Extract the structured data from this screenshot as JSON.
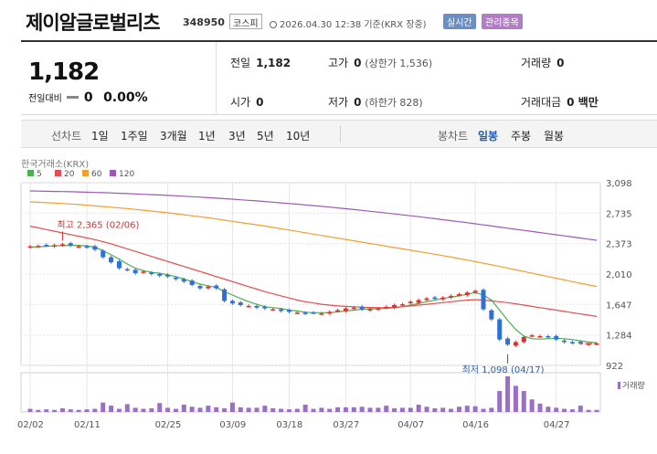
{
  "header": {
    "name": "제이알글로벌리츠",
    "code": "348950",
    "market": "코스피",
    "datetime": "2026.04.30 12:38 기준(KRX 장중)",
    "badge_live": "실시간",
    "badge_managed": "관리종목"
  },
  "quote": {
    "price": "1,182",
    "change_label": "전일대비",
    "change_value": "0",
    "change_pct": "0.00%",
    "prev_label": "전일",
    "prev_value": "1,182",
    "high_label": "고가",
    "high_value": "0",
    "high_sub": "(상한가 1,536)",
    "volume_label": "거래량",
    "volume_value": "0",
    "open_label": "시가",
    "open_value": "0",
    "low_label": "저가",
    "low_value": "0",
    "low_sub": "(하한가 828)",
    "amount_label": "거래대금",
    "amount_value": "0 백만"
  },
  "tabs": {
    "line_chart_label": "선차트",
    "periods": [
      "1일",
      "1주일",
      "3개월",
      "1년",
      "3년",
      "5년",
      "10년"
    ],
    "candle_label": "봉차트",
    "candle_periods": [
      "일봉",
      "주봉",
      "월봉"
    ],
    "active_candle": "일봉"
  },
  "chart_data": {
    "type": "candlestick",
    "source": "한국거래소(KRX)",
    "moving_averages": [
      {
        "name": "5",
        "color": "#4caf50"
      },
      {
        "name": "20",
        "color": "#e05050"
      },
      {
        "name": "60",
        "color": "#f0a030"
      },
      {
        "name": "120",
        "color": "#9b59b6"
      }
    ],
    "y_ticks": [
      "3,098",
      "2,735",
      "2,373",
      "2,010",
      "1,647",
      "1,284",
      "922"
    ],
    "y_range": [
      922,
      3098
    ],
    "x_ticks": [
      "02/02",
      "02/11",
      "02/25",
      "03/09",
      "03/18",
      "03/27",
      "04/07",
      "04/16",
      "04/27"
    ],
    "volume_label": "거래량",
    "high_note": "최고 2,365 (02/06)",
    "low_note": "최저 1,098 (04/17)",
    "colors": {
      "up": "#e03030",
      "down": "#2f6fd6",
      "grid": "#e6e6e6"
    },
    "closes": [
      2340,
      2345,
      2350,
      2355,
      2365,
      2350,
      2340,
      2330,
      2300,
      2210,
      2150,
      2080,
      2060,
      2020,
      2040,
      2010,
      1990,
      1980,
      1950,
      1920,
      1880,
      1840,
      1860,
      1840,
      1690,
      1660,
      1640,
      1630,
      1610,
      1600,
      1590,
      1570,
      1560,
      1550,
      1540,
      1550,
      1540,
      1560,
      1580,
      1600,
      1610,
      1590,
      1590,
      1600,
      1620,
      1640,
      1650,
      1680,
      1700,
      1720,
      1720,
      1730,
      1750,
      1770,
      1790,
      1810,
      1590,
      1470,
      1230,
      1170,
      1200,
      1260,
      1280,
      1270,
      1260,
      1230,
      1200,
      1190,
      1182,
      1182,
      1182
    ],
    "volumes": [
      30,
      20,
      25,
      20,
      35,
      25,
      20,
      25,
      30,
      90,
      60,
      30,
      75,
      40,
      30,
      35,
      85,
      40,
      30,
      70,
      50,
      40,
      60,
      45,
      35,
      90,
      45,
      40,
      40,
      60,
      35,
      30,
      25,
      30,
      70,
      30,
      40,
      30,
      45,
      45,
      45,
      50,
      40,
      40,
      60,
      35,
      40,
      40,
      70,
      50,
      35,
      40,
      30,
      50,
      60,
      55,
      30,
      40,
      200,
      340,
      250,
      200,
      120,
      80,
      50,
      40,
      30,
      25,
      60,
      20,
      20
    ],
    "ma5": [
      2330,
      2335,
      2340,
      2345,
      2348,
      2352,
      2352,
      2346,
      2330,
      2290,
      2240,
      2190,
      2130,
      2080,
      2050,
      2030,
      2020,
      2000,
      1980,
      1950,
      1920,
      1890,
      1870,
      1850,
      1800,
      1760,
      1720,
      1680,
      1650,
      1620,
      1610,
      1600,
      1580,
      1570,
      1555,
      1550,
      1550,
      1550,
      1560,
      1570,
      1580,
      1590,
      1595,
      1598,
      1600,
      1610,
      1620,
      1640,
      1660,
      1680,
      1700,
      1720,
      1735,
      1750,
      1770,
      1790,
      1760,
      1700,
      1580,
      1460,
      1350,
      1270,
      1240,
      1235,
      1240,
      1245,
      1240,
      1230,
      1215,
      1200,
      1190
    ],
    "ma20": [
      2580,
      2560,
      2540,
      2520,
      2500,
      2480,
      2460,
      2440,
      2420,
      2395,
      2370,
      2340,
      2310,
      2280,
      2250,
      2220,
      2190,
      2160,
      2130,
      2100,
      2070,
      2040,
      2010,
      1980,
      1950,
      1920,
      1890,
      1860,
      1830,
      1800,
      1775,
      1750,
      1725,
      1700,
      1680,
      1665,
      1650,
      1640,
      1630,
      1625,
      1620,
      1615,
      1612,
      1610,
      1610,
      1615,
      1620,
      1630,
      1640,
      1650,
      1660,
      1670,
      1680,
      1690,
      1700,
      1705,
      1700,
      1690,
      1680,
      1670,
      1655,
      1640,
      1625,
      1610,
      1595,
      1580,
      1565,
      1550,
      1535,
      1520,
      1505
    ],
    "ma60": [
      2870,
      2865,
      2860,
      2855,
      2850,
      2845,
      2838,
      2830,
      2822,
      2814,
      2806,
      2798,
      2790,
      2780,
      2770,
      2760,
      2750,
      2740,
      2728,
      2716,
      2704,
      2692,
      2680,
      2666,
      2652,
      2638,
      2624,
      2610,
      2596,
      2582,
      2566,
      2550,
      2534,
      2518,
      2502,
      2486,
      2470,
      2454,
      2438,
      2422,
      2406,
      2390,
      2374,
      2358,
      2342,
      2326,
      2310,
      2294,
      2278,
      2262,
      2246,
      2230,
      2212,
      2194,
      2176,
      2158,
      2140,
      2120,
      2100,
      2080,
      2060,
      2040,
      2020,
      2000,
      1980,
      1960,
      1940,
      1920,
      1900,
      1880,
      1862
    ],
    "ma120": [
      3000,
      2998,
      2996,
      2994,
      2992,
      2990,
      2988,
      2985,
      2982,
      2979,
      2976,
      2972,
      2968,
      2964,
      2960,
      2956,
      2952,
      2947,
      2942,
      2937,
      2932,
      2926,
      2920,
      2914,
      2908,
      2902,
      2895,
      2888,
      2881,
      2874,
      2866,
      2858,
      2850,
      2842,
      2834,
      2825,
      2816,
      2807,
      2798,
      2788,
      2778,
      2768,
      2758,
      2748,
      2737,
      2726,
      2715,
      2704,
      2693,
      2681,
      2669,
      2657,
      2645,
      2633,
      2621,
      2608,
      2595,
      2582,
      2569,
      2556,
      2543,
      2530,
      2517,
      2504,
      2491,
      2478,
      2465,
      2452,
      2439,
      2426,
      2413
    ]
  }
}
